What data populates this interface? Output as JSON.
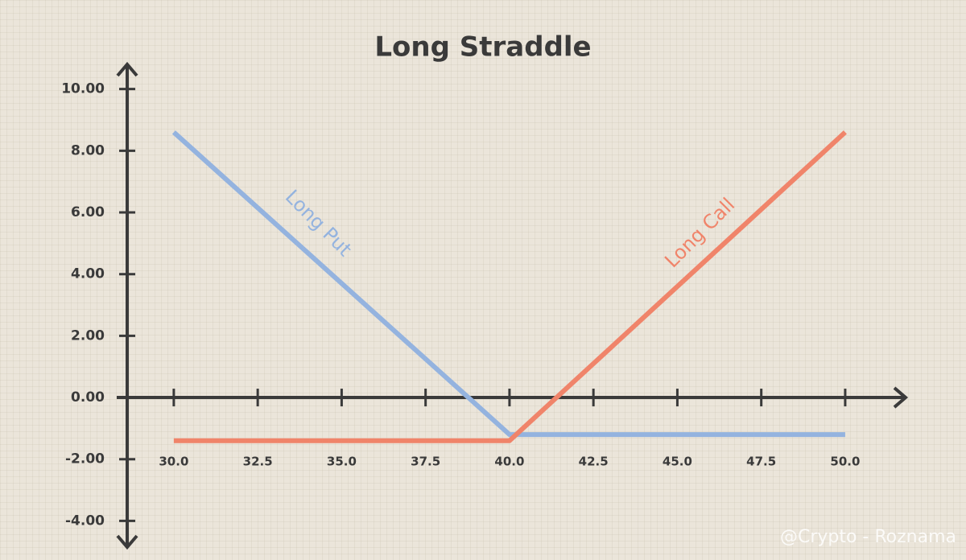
{
  "chart_data": {
    "type": "line",
    "title": "Long Straddle",
    "x": [
      30,
      40,
      50
    ],
    "series": [
      {
        "name": "Long Put",
        "color": "#94b3df",
        "values": [
          8.6,
          -1.2,
          -1.2
        ]
      },
      {
        "name": "Long Call",
        "color": "#f0846a",
        "values": [
          -1.4,
          -1.4,
          8.6
        ]
      }
    ],
    "xlim": [
      28.3,
      51.8
    ],
    "ylim": [
      -4.85,
      10.8
    ],
    "xticks": [
      {
        "value": 30,
        "label": "30.0"
      },
      {
        "value": 32.5,
        "label": "32.5"
      },
      {
        "value": 35,
        "label": "35.0"
      },
      {
        "value": 37.5,
        "label": "37.5"
      },
      {
        "value": 40,
        "label": "40.0"
      },
      {
        "value": 42.5,
        "label": "42.5"
      },
      {
        "value": 45,
        "label": "45.0"
      },
      {
        "value": 47.5,
        "label": "47.5"
      },
      {
        "value": 50,
        "label": "50.0"
      }
    ],
    "yticks": [
      {
        "value": -4,
        "label": "-4.00"
      },
      {
        "value": -2,
        "label": "-2.00"
      },
      {
        "value": 0,
        "label": "0.00"
      },
      {
        "value": 2,
        "label": "2.00"
      },
      {
        "value": 4,
        "label": "4.00"
      },
      {
        "value": 6,
        "label": "6.00"
      },
      {
        "value": 8,
        "label": "8.00"
      },
      {
        "value": 10,
        "label": "10.00"
      }
    ],
    "grid": false,
    "watermark": "@Crypto - Roznama"
  }
}
